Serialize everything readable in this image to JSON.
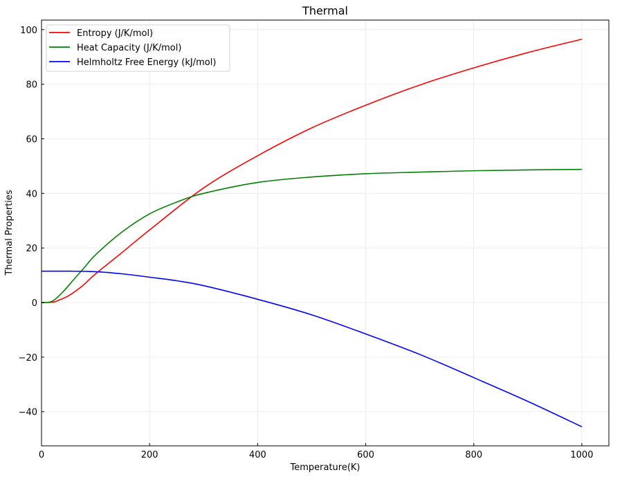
{
  "chart_data": {
    "type": "line",
    "title": "Thermal",
    "xlabel": "Temperature(K)",
    "ylabel": "Thermal Properties",
    "xlim": [
      0,
      1050
    ],
    "ylim": [
      -52.5,
      103.5
    ],
    "xticks": [
      0,
      200,
      400,
      600,
      800,
      1000
    ],
    "yticks": [
      -40,
      -20,
      0,
      20,
      40,
      60,
      80,
      100
    ],
    "grid": true,
    "legend_position": "top-left",
    "series": [
      {
        "name": "Entropy (J/K/mol)",
        "color": "#ff0000",
        "x": [
          0,
          20,
          30,
          50,
          75,
          100,
          150,
          200,
          300,
          400,
          500,
          600,
          700,
          800,
          900,
          1000
        ],
        "y": [
          0,
          0.1,
          0.7,
          2.5,
          6,
          10.5,
          18.5,
          26.6,
          42,
          53.8,
          64,
          72.3,
          79.7,
          86,
          91.6,
          96.5
        ]
      },
      {
        "name": "Heat Capacity (J/K/mol)",
        "color": "#008000",
        "x": [
          0,
          20,
          40,
          60,
          80,
          100,
          150,
          200,
          250,
          300,
          400,
          500,
          600,
          700,
          800,
          900,
          1000
        ],
        "y": [
          0,
          0.5,
          4,
          8.5,
          13,
          17.5,
          26,
          32.5,
          36.8,
          40,
          44,
          46,
          47.2,
          47.8,
          48.3,
          48.6,
          48.8
        ]
      },
      {
        "name": "Helmholtz Free Energy (kJ/mol)",
        "color": "#0000ff",
        "x": [
          0,
          50,
          100,
          150,
          200,
          250,
          300,
          400,
          500,
          600,
          700,
          800,
          900,
          1000
        ],
        "y": [
          11.5,
          11.5,
          11.3,
          10.5,
          9.3,
          8,
          6.2,
          1.2,
          -4.5,
          -11.5,
          -19,
          -27.5,
          -36.2,
          -45.5
        ]
      }
    ]
  }
}
